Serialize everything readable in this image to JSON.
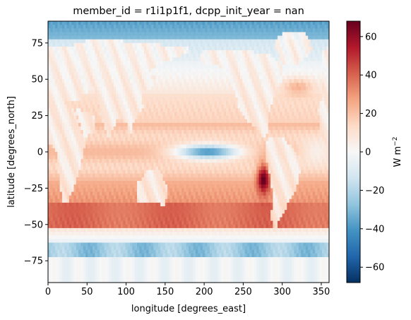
{
  "chart_data": {
    "type": "heatmap",
    "title": "member_id = r1i1p1f1, dcpp_init_year = nan",
    "xlabel": "longitude [degrees_east]",
    "ylabel": "latitude [degrees_north]",
    "xlim": [
      0,
      360
    ],
    "ylim": [
      -90,
      90
    ],
    "xticks": [
      0,
      50,
      100,
      150,
      200,
      250,
      300,
      350
    ],
    "yticks": [
      -75,
      -50,
      -25,
      0,
      25,
      50,
      75
    ],
    "colorbar": {
      "label": "W m$^{-2}$",
      "label_base": "W m",
      "label_exp": "−2",
      "vmin": -68,
      "vmax": 68,
      "ticks": [
        -60,
        -40,
        -20,
        0,
        20,
        40,
        60
      ],
      "colormap": "RdBu_r",
      "colormap_stops": [
        "#053061",
        "#2166ac",
        "#4393c3",
        "#92c5de",
        "#d1e5f0",
        "#f7f7f7",
        "#fddbc7",
        "#f4a582",
        "#d6604d",
        "#b2182b",
        "#67001f"
      ]
    },
    "grid": false,
    "features": [
      {
        "region": "high Arctic (lat > 80)",
        "approx_value": -35
      },
      {
        "region": "Southern Ocean band (lat -45 to -35)",
        "approx_value": 40
      },
      {
        "region": "equatorial central Pacific (lon 160-250, lat -5 to 5)",
        "approx_value": -45
      },
      {
        "region": "Humboldt coast off South America (lon 270-285, lat -25 to -10)",
        "approx_value": 68
      },
      {
        "region": "Antarctic coastal margin (lat -70 to -60)",
        "approx_value": -25
      },
      {
        "region": "Antarctic interior (lat < -72)",
        "approx_value": -3
      }
    ]
  }
}
